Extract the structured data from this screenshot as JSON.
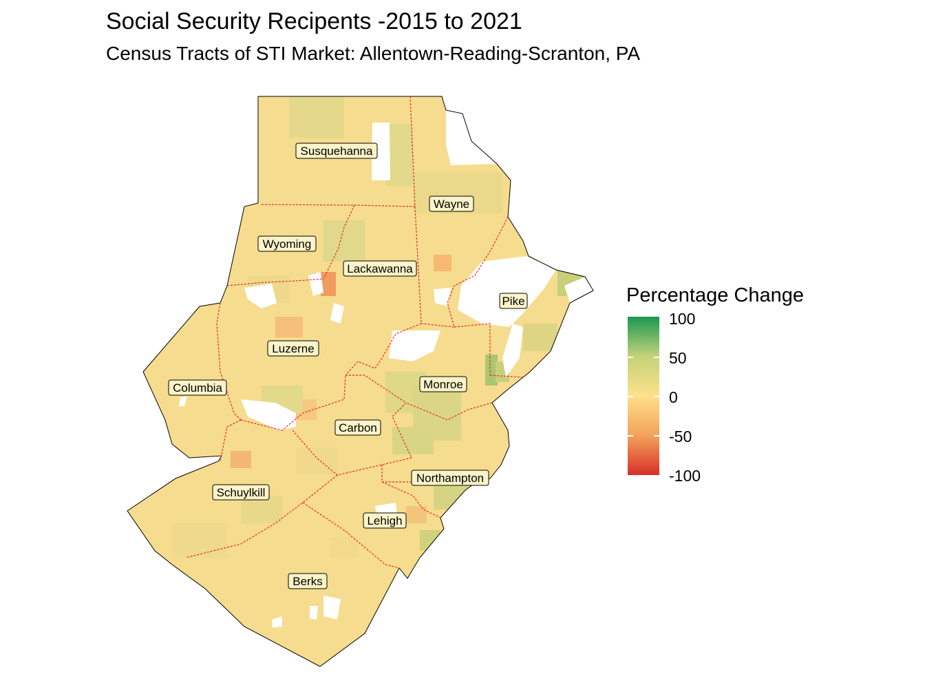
{
  "title": "Social Security Recipents -2015 to 2021",
  "subtitle": "Census Tracts of STI Market: Allentown-Reading-Scranton, PA",
  "legend": {
    "title": "Percentage Change",
    "ticks": [
      "100",
      "50",
      "0",
      "-50",
      "-100"
    ],
    "colors": {
      "high": "#1a9850",
      "mid": "#fee08b",
      "low": "#d73027"
    },
    "range": [
      -100,
      100
    ]
  },
  "counties": [
    {
      "name": "Susquehanna"
    },
    {
      "name": "Wayne"
    },
    {
      "name": "Wyoming"
    },
    {
      "name": "Lackawanna"
    },
    {
      "name": "Pike"
    },
    {
      "name": "Luzerne"
    },
    {
      "name": "Columbia"
    },
    {
      "name": "Monroe"
    },
    {
      "name": "Carbon"
    },
    {
      "name": "Northampton"
    },
    {
      "name": "Schuylkill"
    },
    {
      "name": "Lehigh"
    },
    {
      "name": "Berks"
    }
  ],
  "map_style": {
    "base_fill": "#f6dc8e",
    "county_border": "#e8262c",
    "outline": "#000000"
  }
}
